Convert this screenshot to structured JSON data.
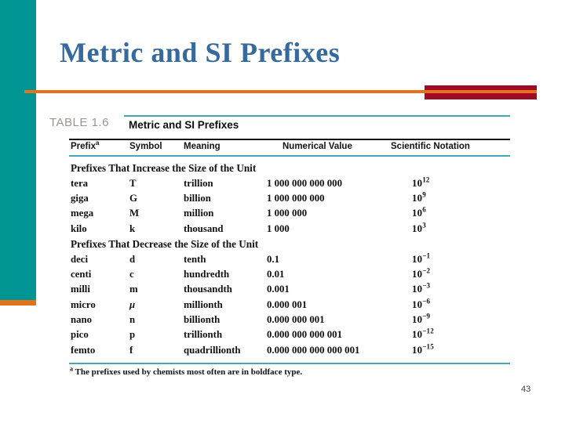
{
  "slide": {
    "title": "Metric and SI Prefixes",
    "page_number": "43",
    "colors": {
      "sidebar_teal": "#009493",
      "accent_orange": "#e8721c",
      "accent_crimson": "#9e0b26",
      "title_blue": "#36699c",
      "table_rule_teal": "#45a8ba",
      "table_label_gray": "#9b968d"
    }
  },
  "table": {
    "label": "TABLE 1.6",
    "title": "Metric and SI Prefixes",
    "headers": {
      "prefix": "Prefix",
      "prefix_sup": "a",
      "symbol": "Symbol",
      "meaning": "Meaning",
      "numerical": "Numerical Value",
      "scientific": "Scientific Notation"
    },
    "section_increase": "Prefixes That Increase the Size of the Unit",
    "section_decrease": "Prefixes That Decrease the Size of the Unit",
    "sci_base": "10",
    "rows_increase": [
      {
        "prefix": "tera",
        "symbol": "T",
        "meaning": "trillion",
        "value": "1 000 000 000 000",
        "exp": "12"
      },
      {
        "prefix": "giga",
        "symbol": "G",
        "meaning": "billion",
        "value": "1 000 000 000",
        "exp": "9"
      },
      {
        "prefix": "mega",
        "symbol": "M",
        "meaning": "million",
        "value": "1 000 000",
        "exp": "6"
      },
      {
        "prefix": "kilo",
        "symbol": "k",
        "meaning": "thousand",
        "value": "1 000",
        "exp": "3"
      }
    ],
    "rows_decrease": [
      {
        "prefix": "deci",
        "symbol": "d",
        "meaning": "tenth",
        "value": "0.1",
        "exp": "−1"
      },
      {
        "prefix": "centi",
        "symbol": "c",
        "meaning": "hundredth",
        "value": "0.01",
        "exp": "−2"
      },
      {
        "prefix": "milli",
        "symbol": "m",
        "meaning": "thousandth",
        "value": "0.001",
        "exp": "−3"
      },
      {
        "prefix": "micro",
        "symbol": "μ",
        "meaning": "millionth",
        "value": "0.000 001",
        "exp": "−6"
      },
      {
        "prefix": "nano",
        "symbol": "n",
        "meaning": "billionth",
        "value": "0.000 000 001",
        "exp": "−9"
      },
      {
        "prefix": "pico",
        "symbol": "p",
        "meaning": "trillionth",
        "value": "0.000 000 000 001",
        "exp": "−12"
      },
      {
        "prefix": "femto",
        "symbol": "f",
        "meaning": "quadrillionth",
        "value": "0.000 000 000 000 001",
        "exp": "−15"
      }
    ],
    "footnote_sup": "a",
    "footnote": "The prefixes used by chemists most often are in boldface type."
  }
}
